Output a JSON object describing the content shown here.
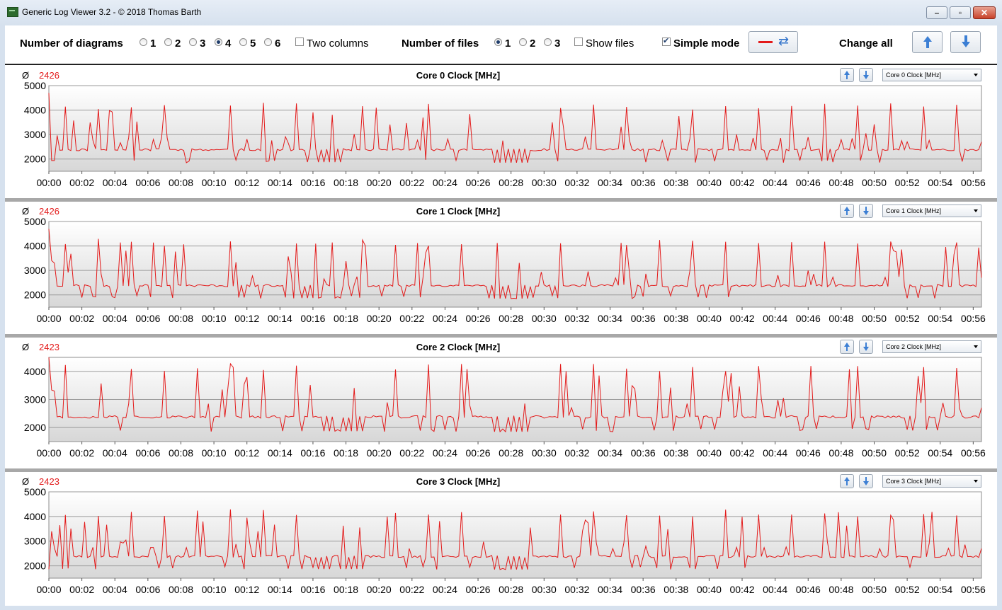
{
  "window": {
    "title": "Generic Log Viewer 3.2 - © 2018 Thomas Barth"
  },
  "toolbar": {
    "diagrams_label": "Number of diagrams",
    "diagram_options": [
      "1",
      "2",
      "3",
      "4",
      "5",
      "6"
    ],
    "diagram_selected": "4",
    "two_columns_label": "Two columns",
    "two_columns_checked": false,
    "files_label": "Number of files",
    "file_options": [
      "1",
      "2",
      "3"
    ],
    "file_selected": "1",
    "show_files_label": "Show files",
    "show_files_checked": false,
    "simple_mode_label": "Simple mode",
    "simple_mode_checked": true,
    "change_all_label": "Change all"
  },
  "colors": {
    "series": "#e31a1a",
    "accent": "#3c7fd4"
  },
  "chart_data": [
    {
      "type": "line",
      "title": "Core 0 Clock [MHz]",
      "average_symbol": "Ø",
      "average": "2426",
      "selector": "Core 0 Clock [MHz]",
      "ylim": [
        1500,
        5000
      ],
      "yticks": [
        2000,
        3000,
        4000,
        5000
      ],
      "xlim": [
        0,
        56.5
      ],
      "xticks": [
        "00:00",
        "00:02",
        "00:04",
        "00:06",
        "00:08",
        "00:10",
        "00:12",
        "00:14",
        "00:16",
        "00:18",
        "00:20",
        "00:22",
        "00:24",
        "00:26",
        "00:28",
        "00:30",
        "00:32",
        "00:34",
        "00:36",
        "00:38",
        "00:40",
        "00:42",
        "00:44",
        "00:46",
        "00:48",
        "00:50",
        "00:52",
        "00:54",
        "00:56"
      ],
      "grid": true,
      "series": [
        {
          "color": "#e31a1a",
          "values": []
        }
      ]
    },
    {
      "type": "line",
      "title": "Core 1 Clock [MHz]",
      "average_symbol": "Ø",
      "average": "2426",
      "selector": "Core 1 Clock [MHz]",
      "ylim": [
        1500,
        5000
      ],
      "yticks": [
        2000,
        3000,
        4000,
        5000
      ],
      "xlim": [
        0,
        56.5
      ],
      "xticks": [
        "00:00",
        "00:02",
        "00:04",
        "00:06",
        "00:08",
        "00:10",
        "00:12",
        "00:14",
        "00:16",
        "00:18",
        "00:20",
        "00:22",
        "00:24",
        "00:26",
        "00:28",
        "00:30",
        "00:32",
        "00:34",
        "00:36",
        "00:38",
        "00:40",
        "00:42",
        "00:44",
        "00:46",
        "00:48",
        "00:50",
        "00:52",
        "00:54",
        "00:56"
      ],
      "grid": true,
      "series": [
        {
          "color": "#e31a1a",
          "values": []
        }
      ]
    },
    {
      "type": "line",
      "title": "Core 2 Clock [MHz]",
      "average_symbol": "Ø",
      "average": "2423",
      "selector": "Core 2 Clock [MHz]",
      "ylim": [
        1500,
        4500
      ],
      "yticks": [
        2000,
        3000,
        4000
      ],
      "xlim": [
        0,
        56.5
      ],
      "xticks": [
        "00:00",
        "00:02",
        "00:04",
        "00:06",
        "00:08",
        "00:10",
        "00:12",
        "00:14",
        "00:16",
        "00:18",
        "00:20",
        "00:22",
        "00:24",
        "00:26",
        "00:28",
        "00:30",
        "00:32",
        "00:34",
        "00:36",
        "00:38",
        "00:40",
        "00:42",
        "00:44",
        "00:46",
        "00:48",
        "00:50",
        "00:52",
        "00:54",
        "00:56"
      ],
      "grid": true,
      "series": [
        {
          "color": "#e31a1a",
          "values": []
        }
      ]
    },
    {
      "type": "line",
      "title": "Core 3 Clock [MHz]",
      "average_symbol": "Ø",
      "average": "2423",
      "selector": "Core 3 Clock [MHz]",
      "ylim": [
        1500,
        5000
      ],
      "yticks": [
        2000,
        3000,
        4000,
        5000
      ],
      "xlim": [
        0,
        56.5
      ],
      "xticks": [
        "00:00",
        "00:02",
        "00:04",
        "00:06",
        "00:08",
        "00:10",
        "00:12",
        "00:14",
        "00:16",
        "00:18",
        "00:20",
        "00:22",
        "00:24",
        "00:26",
        "00:28",
        "00:30",
        "00:32",
        "00:34",
        "00:36",
        "00:38",
        "00:40",
        "00:42",
        "00:44",
        "00:46",
        "00:48",
        "00:50",
        "00:52",
        "00:54",
        "00:56"
      ],
      "grid": true,
      "series": [
        {
          "color": "#e31a1a",
          "values": []
        }
      ]
    }
  ]
}
